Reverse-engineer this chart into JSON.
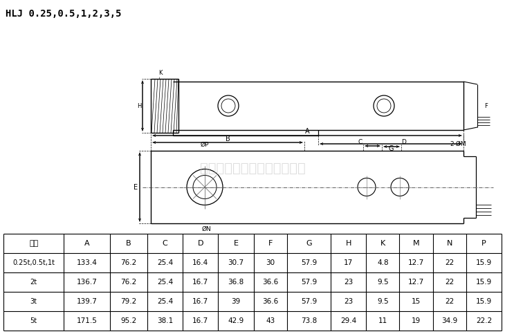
{
  "title": "HLJ 0.25,0.5,1,2,3,5",
  "watermark": "广州众鑫自动化科技有限公司",
  "table_headers": [
    "称量",
    "A",
    "B",
    "C",
    "D",
    "E",
    "F",
    "G",
    "H",
    "K",
    "M",
    "N",
    "P"
  ],
  "table_rows": [
    [
      "0.25t,0.5t,1t",
      "133.4",
      "76.2",
      "25.4",
      "16.4",
      "30.7",
      "30",
      "57.9",
      "17",
      "4.8",
      "12.7",
      "22",
      "15.9"
    ],
    [
      "2t",
      "136.7",
      "76.2",
      "25.4",
      "16.7",
      "36.8",
      "36.6",
      "57.9",
      "23",
      "9.5",
      "12.7",
      "22",
      "15.9"
    ],
    [
      "3t",
      "139.7",
      "79.2",
      "25.4",
      "16.7",
      "39",
      "36.6",
      "57.9",
      "23",
      "9.5",
      "15",
      "22",
      "15.9"
    ],
    [
      "5t",
      "171.5",
      "95.2",
      "38.1",
      "16.7",
      "42.9",
      "43",
      "73.8",
      "29.4",
      "11",
      "19",
      "34.9",
      "22.2"
    ]
  ],
  "bg_color": "#ffffff",
  "lc": "#000000"
}
